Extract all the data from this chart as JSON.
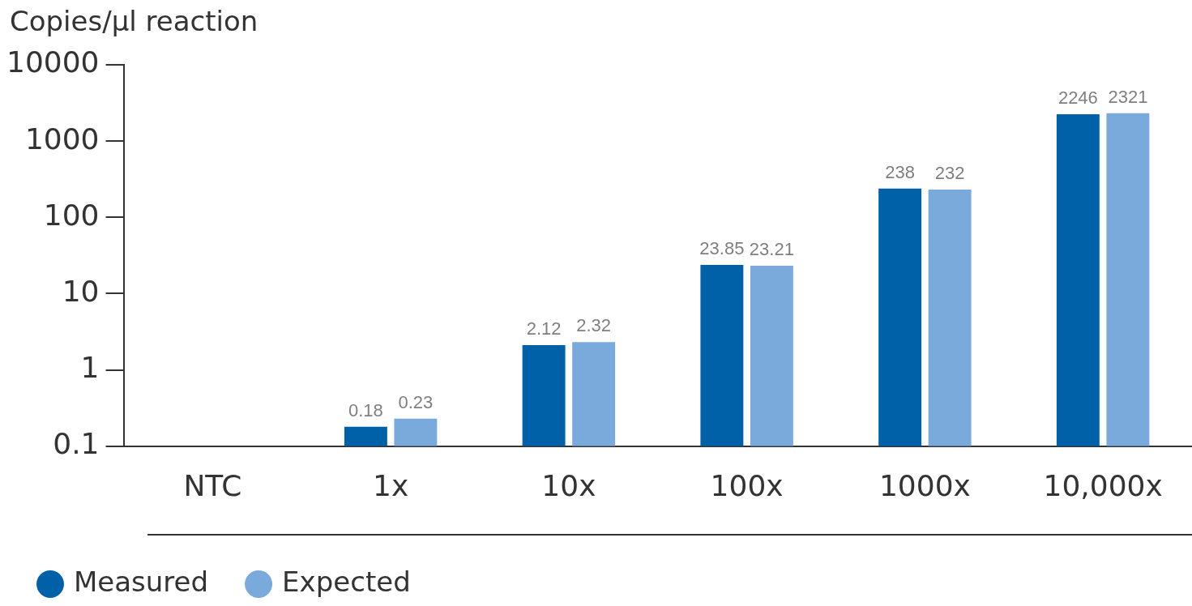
{
  "chart_data": {
    "type": "bar",
    "ylabel": "Copies/µl reaction",
    "categories": [
      "NTC",
      "1x",
      "10x",
      "100x",
      "1000x",
      "10,000x"
    ],
    "series": [
      {
        "name": "Measured",
        "color": "#0061a9",
        "values": [
          null,
          0.18,
          2.12,
          23.85,
          238,
          2246
        ]
      },
      {
        "name": "Expected",
        "color": "#79aadb",
        "values": [
          null,
          0.23,
          2.32,
          23.21,
          232,
          2321
        ]
      }
    ],
    "log": true,
    "ylim": [
      0.1,
      10000
    ],
    "yticks": [
      0.1,
      1,
      10,
      100,
      1000,
      10000
    ],
    "grid": false,
    "legend": "bottom left",
    "marker": "circle",
    "data_labels": true
  }
}
